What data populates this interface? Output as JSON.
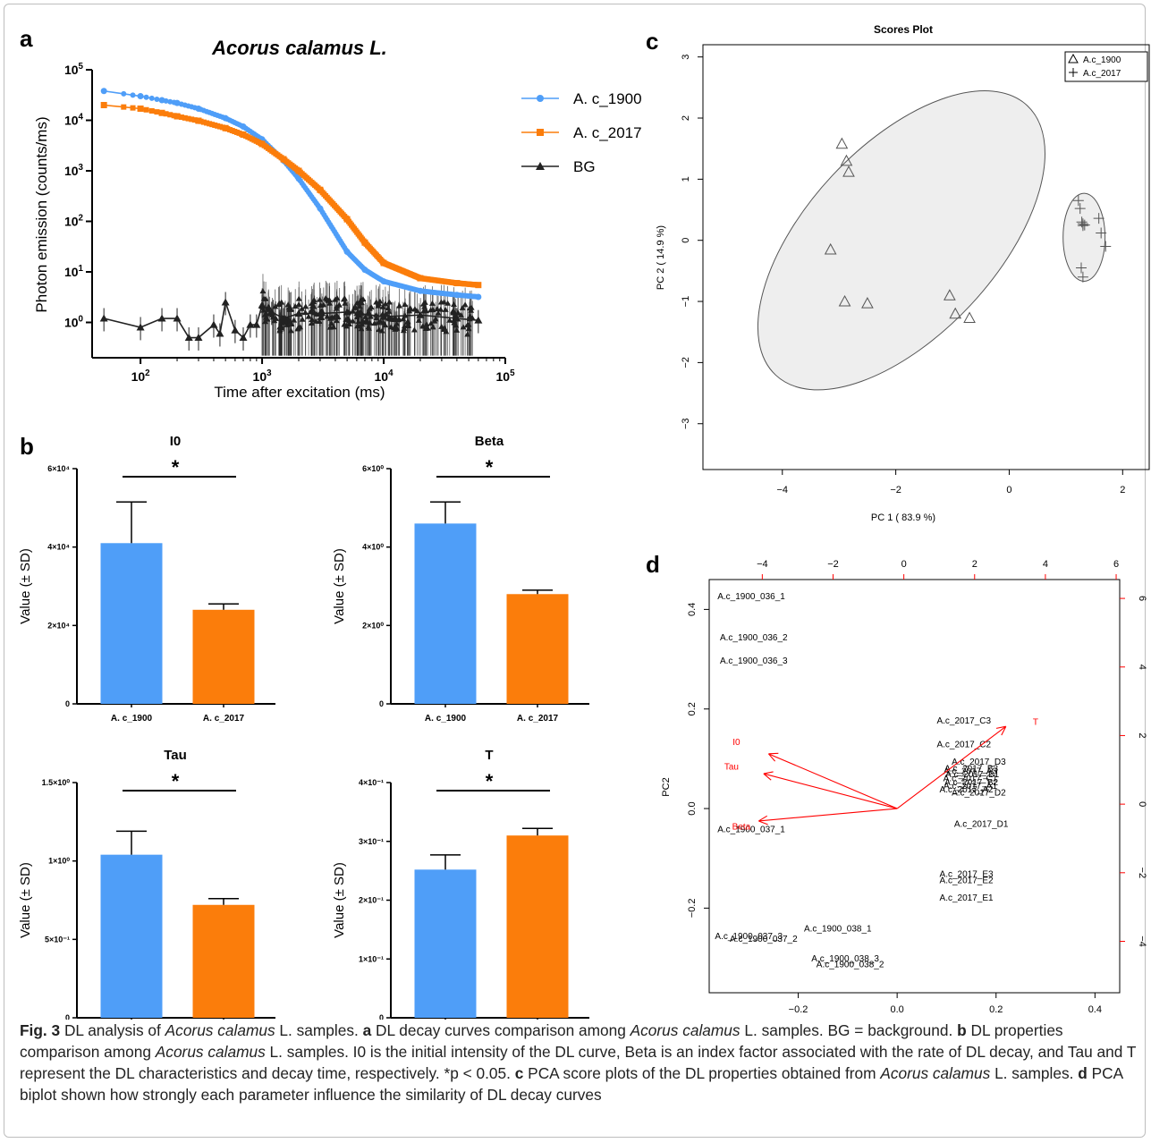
{
  "panel_labels": {
    "a": "a",
    "b": "b",
    "c": "c",
    "d": "d"
  },
  "colors": {
    "c1900": "#4f9ef8",
    "c2017": "#fb7d0b",
    "bg": "#222222",
    "pca_red": "#ff0000",
    "ellipse_fill": "#eeeeee"
  },
  "chart_data": [
    {
      "id": "a",
      "type": "line",
      "title": "Acorus calamus L.",
      "xlabel": "Time after excitation (ms)",
      "ylabel": "Photon emission (counts/ms)",
      "x_scale": "log",
      "y_scale": "log",
      "xlim": [
        40,
        100000
      ],
      "ylim": [
        0.2,
        100000
      ],
      "x_ticks": [
        {
          "v": 100,
          "b": "10",
          "e": "2"
        },
        {
          "v": 1000,
          "b": "10",
          "e": "3"
        },
        {
          "v": 10000,
          "b": "10",
          "e": "4"
        },
        {
          "v": 100000,
          "b": "10",
          "e": "5"
        }
      ],
      "y_ticks": [
        {
          "v": 1,
          "b": "10",
          "e": "0"
        },
        {
          "v": 10,
          "b": "10",
          "e": "1"
        },
        {
          "v": 100,
          "b": "10",
          "e": "2"
        },
        {
          "v": 1000,
          "b": "10",
          "e": "3"
        },
        {
          "v": 10000,
          "b": "10",
          "e": "4"
        },
        {
          "v": 100000,
          "b": "10",
          "e": "5"
        }
      ],
      "legend": "right",
      "series": [
        {
          "name": "A. c_1900",
          "marker": "circle",
          "x": [
            50,
            100,
            150,
            200,
            300,
            500,
            700,
            1000,
            1500,
            2000,
            3000,
            5000,
            7000,
            10000,
            20000,
            40000,
            60000
          ],
          "y": [
            38000,
            30000,
            25000,
            22000,
            17000,
            11000,
            7500,
            4200,
            1600,
            700,
            180,
            25,
            11,
            6.5,
            4.2,
            3.5,
            3.2
          ]
        },
        {
          "name": "A. c_2017",
          "marker": "square",
          "x": [
            50,
            100,
            150,
            200,
            300,
            500,
            700,
            1000,
            1500,
            2000,
            3000,
            5000,
            7000,
            10000,
            20000,
            40000,
            60000
          ],
          "y": [
            20000,
            17000,
            14000,
            12000,
            9800,
            7000,
            5200,
            3400,
            1700,
            1000,
            420,
            110,
            38,
            15,
            7.5,
            6,
            5.5
          ]
        },
        {
          "name": "BG",
          "marker": "triangle",
          "x": [
            50,
            100,
            150,
            200,
            250,
            300,
            400,
            450,
            500,
            600,
            700,
            800,
            900,
            1000,
            1200,
            1500,
            2000,
            3000,
            5000,
            10000,
            20000,
            40000,
            60000
          ],
          "y": [
            1.2,
            0.8,
            1.2,
            1.2,
            0.5,
            0.5,
            0.9,
            0.6,
            2.5,
            0.7,
            0.5,
            0.9,
            0.9,
            2.2,
            1.6,
            1.2,
            1.5,
            1.5,
            1.6,
            1.3,
            1.4,
            1.2,
            1.1
          ]
        }
      ]
    },
    {
      "id": "b-I0",
      "type": "bar",
      "title": "I0",
      "ylabel": "Value (± SD)",
      "categories": [
        "A. c_1900",
        "A. c_2017"
      ],
      "values": [
        41000,
        24000
      ],
      "errors": [
        10500,
        1500
      ],
      "ylim": [
        0,
        60000
      ],
      "y_ticks": [
        {
          "v": 0,
          "t": "0"
        },
        {
          "v": 20000,
          "t": "2×10⁴"
        },
        {
          "v": 40000,
          "t": "4×10⁴"
        },
        {
          "v": 60000,
          "t": "6×10⁴"
        }
      ],
      "significance": "*"
    },
    {
      "id": "b-Beta",
      "type": "bar",
      "title": "Beta",
      "ylabel": "Value (± SD)",
      "categories": [
        "A. c_1900",
        "A. c_2017"
      ],
      "values": [
        4.6,
        2.8
      ],
      "errors": [
        0.55,
        0.1
      ],
      "ylim": [
        0,
        6
      ],
      "y_ticks": [
        {
          "v": 0,
          "t": "0"
        },
        {
          "v": 2,
          "t": "2×10⁰"
        },
        {
          "v": 4,
          "t": "4×10⁰"
        },
        {
          "v": 6,
          "t": "6×10⁰"
        }
      ],
      "significance": "*"
    },
    {
      "id": "b-Tau",
      "type": "bar",
      "title": "Tau",
      "ylabel": "Value (± SD)",
      "categories": [
        "A. c_1900",
        "A. c_2017"
      ],
      "values": [
        1.04,
        0.72
      ],
      "errors": [
        0.15,
        0.04
      ],
      "ylim": [
        0,
        1.5
      ],
      "y_ticks": [
        {
          "v": 0,
          "t": "0"
        },
        {
          "v": 0.5,
          "t": "5×10⁻¹"
        },
        {
          "v": 1.0,
          "t": "1×10⁰"
        },
        {
          "v": 1.5,
          "t": "1.5×10⁰"
        }
      ],
      "significance": "*"
    },
    {
      "id": "b-T",
      "type": "bar",
      "title": "T",
      "ylabel": "Value (± SD)",
      "categories": [
        "A. c_1900",
        "A. c_2017"
      ],
      "values": [
        0.252,
        0.31
      ],
      "errors": [
        0.025,
        0.012
      ],
      "ylim": [
        0,
        0.4
      ],
      "y_ticks": [
        {
          "v": 0,
          "t": "0"
        },
        {
          "v": 0.1,
          "t": "1×10⁻¹"
        },
        {
          "v": 0.2,
          "t": "2×10⁻¹"
        },
        {
          "v": 0.3,
          "t": "3×10⁻¹"
        },
        {
          "v": 0.4,
          "t": "4×10⁻¹"
        }
      ],
      "significance": "*"
    },
    {
      "id": "c",
      "type": "scatter",
      "title": "Scores Plot",
      "xlabel": "PC 1 ( 83.9 %)",
      "ylabel": "PC 2 ( 14.9 %)",
      "xlim": [
        -5.4,
        2.5
      ],
      "ylim": [
        -3.75,
        3.2
      ],
      "x_ticks": [
        -4,
        -2,
        0,
        2
      ],
      "y_ticks": [
        -3,
        -2,
        -1,
        0,
        1,
        2,
        3
      ],
      "legend": "top-right",
      "series": [
        {
          "name": "A.c_1900",
          "marker": "triangle",
          "x": [
            -2.95,
            -2.87,
            -2.83,
            -3.15,
            -2.9,
            -2.5,
            -1.05,
            -0.95,
            -0.7
          ],
          "y": [
            1.58,
            1.3,
            1.12,
            -0.15,
            -1.0,
            -1.03,
            -0.9,
            -1.2,
            -1.27
          ]
        },
        {
          "name": "A.c_2017",
          "marker": "plus",
          "x": [
            1.22,
            1.25,
            1.28,
            1.3,
            1.33,
            1.27,
            1.3,
            1.3,
            1.58,
            1.62,
            1.7
          ],
          "y": [
            0.65,
            0.52,
            0.3,
            0.27,
            0.25,
            -0.45,
            -0.6,
            0.24,
            0.36,
            0.12,
            -0.1
          ]
        }
      ],
      "ellipses": [
        {
          "cx": -1.9,
          "cy": 0.0,
          "rx": 3.25,
          "ry": 1.55,
          "angle_deg": -47
        },
        {
          "cx": 1.32,
          "cy": 0.05,
          "rx": 0.37,
          "ry": 0.72,
          "angle_deg": 0
        }
      ]
    },
    {
      "id": "d",
      "type": "scatter",
      "subtype": "biplot",
      "xlabel": "PC1",
      "ylabel": "PC2",
      "xlim": [
        -0.38,
        0.45
      ],
      "ylim": [
        -0.37,
        0.46
      ],
      "x_ticks": [
        -0.2,
        0.0,
        0.2,
        0.4
      ],
      "y_ticks": [
        -0.2,
        0.0,
        0.2,
        0.4
      ],
      "top_ticks": [
        -4,
        -2,
        0,
        2,
        4,
        6
      ],
      "right_ticks": [
        -4,
        -2,
        0,
        2,
        4,
        6
      ],
      "top_lim": [
        -5.5,
        6.1
      ],
      "right_lim": [
        -5.5,
        6.55
      ],
      "point_labels": [
        {
          "label": "A.c_1900_036_1",
          "x": -0.295,
          "y": 0.428
        },
        {
          "label": "A.c_1900_036_2",
          "x": -0.29,
          "y": 0.345
        },
        {
          "label": "A.c_1900_036_3",
          "x": -0.29,
          "y": 0.298
        },
        {
          "label": "A.c_1900_037_1",
          "x": -0.295,
          "y": -0.04
        },
        {
          "label": "A.c_1900_037_3",
          "x": -0.3,
          "y": -0.255
        },
        {
          "label": "A.c_1900_037_2",
          "x": -0.27,
          "y": -0.26
        },
        {
          "label": "A.c_1900_038_1",
          "x": -0.12,
          "y": -0.24
        },
        {
          "label": "A.c_1900_038_3",
          "x": -0.105,
          "y": -0.3
        },
        {
          "label": "A.c_1900_038_2",
          "x": -0.095,
          "y": -0.312
        },
        {
          "label": "A.c_2017_C3",
          "x": 0.135,
          "y": 0.178
        },
        {
          "label": "A.c_2017_C2",
          "x": 0.135,
          "y": 0.13
        },
        {
          "label": "A.c_2017_D3",
          "x": 0.165,
          "y": 0.095
        },
        {
          "label": "A.c_2017_B3",
          "x": 0.15,
          "y": 0.082
        },
        {
          "label": "A.c_2017_A3",
          "x": 0.148,
          "y": 0.076
        },
        {
          "label": "A.c_2017_B1",
          "x": 0.152,
          "y": 0.07
        },
        {
          "label": "A.c_2017_C1",
          "x": 0.148,
          "y": 0.062
        },
        {
          "label": "A.c_2017_B2",
          "x": 0.15,
          "y": 0.054
        },
        {
          "label": "A.c_2017_A1",
          "x": 0.148,
          "y": 0.047
        },
        {
          "label": "A.c_2017_A2",
          "x": 0.14,
          "y": 0.04
        },
        {
          "label": "A.c_2017_D2",
          "x": 0.165,
          "y": 0.033
        },
        {
          "label": "A.c_2017_D1",
          "x": 0.17,
          "y": -0.03
        },
        {
          "label": "A.c_2017_E3",
          "x": 0.14,
          "y": -0.13
        },
        {
          "label": "A.c_2017_E2",
          "x": 0.14,
          "y": -0.143
        },
        {
          "label": "A.c_2017_E1",
          "x": 0.14,
          "y": -0.178
        }
      ],
      "arrows": [
        {
          "label": "T",
          "x": 0.22,
          "y": 0.165,
          "lx": 0.28,
          "ly": 0.175
        },
        {
          "label": "I0",
          "x": -0.26,
          "y": 0.11,
          "lx": -0.325,
          "ly": 0.135
        },
        {
          "label": "Tau",
          "x": -0.27,
          "y": 0.07,
          "lx": -0.335,
          "ly": 0.085
        },
        {
          "label": "Beta",
          "x": -0.28,
          "y": -0.025,
          "lx": -0.315,
          "ly": -0.035
        }
      ]
    }
  ],
  "caption": {
    "fig": "Fig. 3",
    "parts": [
      {
        "t": "  DL analysis of ",
        "s": ""
      },
      {
        "t": "Acorus calamus",
        "s": "i"
      },
      {
        "t": " L. samples. ",
        "s": ""
      },
      {
        "t": "a",
        "s": "b"
      },
      {
        "t": " DL decay curves comparison among ",
        "s": ""
      },
      {
        "t": "Acorus calamus",
        "s": "i"
      },
      {
        "t": " L. samples. BG = background. ",
        "s": ""
      },
      {
        "t": "b",
        "s": "b"
      },
      {
        "t": " DL properties comparison among ",
        "s": ""
      },
      {
        "t": "Acorus calamus",
        "s": "i"
      },
      {
        "t": " L. samples. I0 is the initial intensity of the DL curve, Beta is an index factor associated with the rate of DL decay, and Tau and T represent the DL characteristics and decay time, respectively. *p < 0.05. ",
        "s": ""
      },
      {
        "t": "c",
        "s": "b"
      },
      {
        "t": " PCA score plots of the DL properties obtained from ",
        "s": ""
      },
      {
        "t": "Acorus calamus",
        "s": "i"
      },
      {
        "t": " L. samples. ",
        "s": ""
      },
      {
        "t": "d",
        "s": "b"
      },
      {
        "t": " PCA biplot shown how strongly each parameter influence the similarity of DL decay curves",
        "s": ""
      }
    ]
  }
}
